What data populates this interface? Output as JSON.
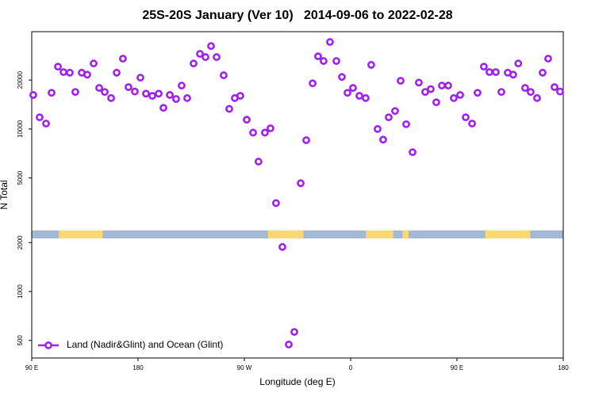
{
  "chart_data": {
    "type": "scatter",
    "title": "25S-20S January (Ver 10)   2014-09-06 to 2022-02-28",
    "x_label": "Longitude (deg E)",
    "y_label": "N Total",
    "log_y": true,
    "legend": "bottom-left",
    "xlim": [
      90,
      540
    ],
    "ylim": [
      390,
      39700
    ],
    "xticks": [
      {
        "value": 90,
        "label": "90 E"
      },
      180,
      {
        "value": 270,
        "label": "90 W"
      },
      {
        "value": 360,
        "label": "0"
      },
      {
        "value": 450,
        "label": "90 E"
      },
      {
        "value": 540,
        "label": "180"
      }
    ],
    "yticks": [
      500,
      1000,
      2000,
      5000,
      10000,
      20000
    ],
    "surface": {
      "ocean_color": "#a3b8d6",
      "land_color": "#fcd873",
      "land": [
        [
          113,
          150
        ],
        [
          290,
          320
        ],
        [
          373,
          396
        ],
        [
          404,
          409
        ],
        [
          474,
          512
        ]
      ]
    },
    "series": [
      {
        "name": "Land (Nadir&Glint) and Ocean (Glint)",
        "color": "#a020f0",
        "x": [
          91.3,
          96.7,
          102.1,
          106.8,
          112.2,
          116.9,
          122.2,
          126.9,
          132.3,
          137.0,
          142.4,
          147.1,
          151.8,
          157.2,
          161.9,
          167.2,
          171.9,
          177.3,
          182.0,
          186.7,
          192.1,
          197.5,
          201.5,
          206.9,
          212.2,
          216.9,
          221.6,
          227.0,
          232.4,
          237.1,
          241.8,
          246.5,
          252.5,
          257.2,
          261.9,
          266.6,
          272.0,
          277.4,
          282.0,
          287.4,
          292.1,
          296.8,
          302.2,
          307.6,
          312.3,
          317.7,
          322.4,
          327.8,
          332.4,
          337.1,
          342.5,
          347.9,
          352.6,
          357.3,
          362.0,
          367.4,
          372.7,
          377.4,
          382.8,
          387.5,
          392.2,
          397.6,
          402.3,
          407.0,
          412.4,
          417.7,
          423.1,
          427.8,
          432.5,
          437.2,
          442.6,
          447.3,
          452.7,
          457.4,
          462.8,
          467.4,
          472.8,
          477.5,
          482.9,
          487.6,
          493.0,
          497.6,
          501.9,
          507.7,
          512.4,
          517.8,
          522.5,
          527.2,
          532.6,
          537.3
        ],
        "values": [
          16200,
          11800,
          10800,
          16700,
          24200,
          22400,
          22200,
          16900,
          22200,
          21600,
          25300,
          17900,
          16900,
          15500,
          22200,
          27100,
          18100,
          17000,
          20700,
          16500,
          16000,
          16500,
          13500,
          16200,
          15300,
          18500,
          15500,
          25300,
          29000,
          27700,
          32400,
          27700,
          21400,
          13300,
          15500,
          16000,
          11400,
          9500,
          6300,
          9500,
          10100,
          3500,
          1880,
          472,
          564,
          4640,
          8530,
          19100,
          28000,
          26200,
          34300,
          26200,
          20900,
          16700,
          17900,
          16000,
          15500,
          24800,
          10000,
          8600,
          11800,
          12900,
          19800,
          10700,
          7200,
          19300,
          16900,
          17600,
          14600,
          18500,
          18500,
          15500,
          16200,
          11800,
          10800,
          16700,
          24200,
          22400,
          22400,
          16900,
          22200,
          21600,
          25300,
          17900,
          16900,
          15500,
          22200,
          27100,
          18100,
          17000
        ]
      }
    ]
  }
}
